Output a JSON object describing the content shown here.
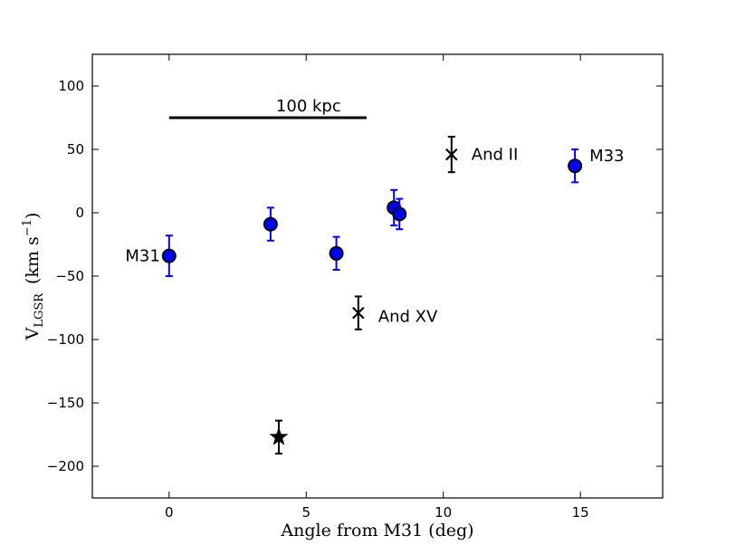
{
  "chart_data": {
    "type": "scatter",
    "xlabel": "Angle from M31 (deg)",
    "ylabel": {
      "main": "V",
      "subscript": "LGSR",
      "units": "(km s",
      "units_sup": "−1",
      "units_close": ")"
    },
    "xlim": [
      -2.8,
      18
    ],
    "ylim": [
      -225,
      125
    ],
    "xticks": [
      0,
      5,
      10,
      15
    ],
    "yticks": [
      -200,
      -150,
      -100,
      -50,
      0,
      50,
      100
    ],
    "scale_bar": {
      "x_start": 0,
      "x_end": 7.2,
      "y": 75,
      "label": "100 kpc"
    },
    "series": [
      {
        "name": "satellites",
        "marker": "circle",
        "fill_color": "#0000ff",
        "error_color": "#0000ff",
        "points": [
          {
            "x": 0.0,
            "y": -34,
            "err": 16,
            "label": "M31"
          },
          {
            "x": 3.7,
            "y": -9,
            "err": 13,
            "label": ""
          },
          {
            "x": 6.1,
            "y": -32,
            "err": 13,
            "label": ""
          },
          {
            "x": 8.2,
            "y": 4,
            "err": 14,
            "label": ""
          },
          {
            "x": 8.4,
            "y": -1,
            "err": 12,
            "label": ""
          },
          {
            "x": 14.8,
            "y": 37,
            "err": 13,
            "label": "M33"
          }
        ]
      },
      {
        "name": "and_dwarfs",
        "marker": "x",
        "error_color": "#000000",
        "points": [
          {
            "x": 10.3,
            "y": 46,
            "err": 14,
            "label": "And II"
          },
          {
            "x": 6.9,
            "y": -79,
            "err": 13,
            "label": "And XV"
          }
        ]
      },
      {
        "name": "star_object",
        "marker": "star",
        "error_color": "#000000",
        "points": [
          {
            "x": 4.0,
            "y": -177,
            "err": 13,
            "label": ""
          }
        ]
      }
    ]
  }
}
